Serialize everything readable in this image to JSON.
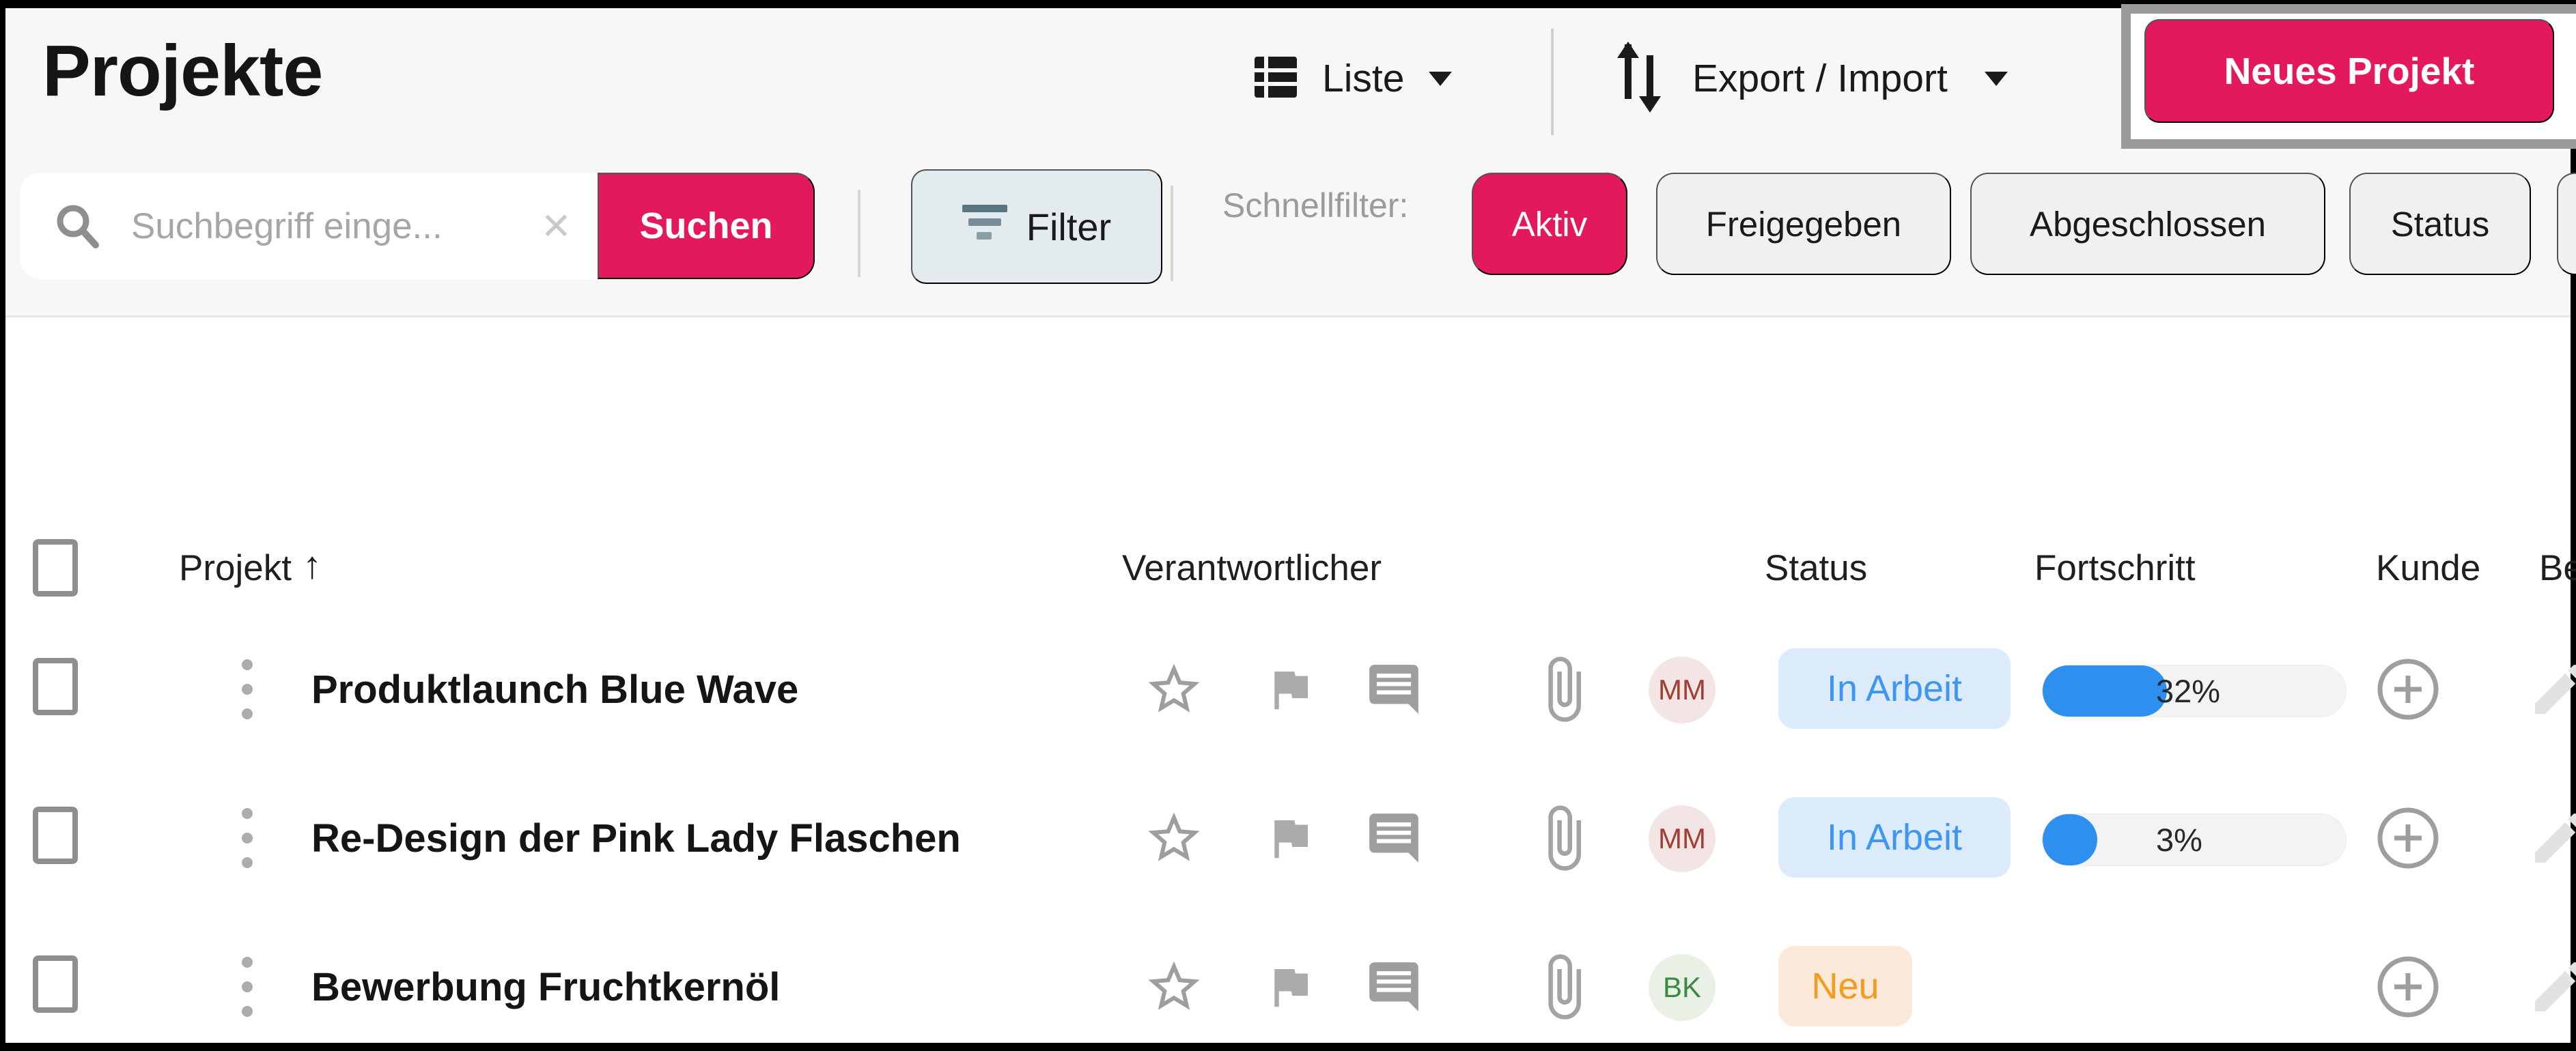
{
  "header": {
    "title": "Projekte",
    "view_switcher": {
      "label": "Liste",
      "icon": "list-grid-icon"
    },
    "export_import": {
      "label": "Export / Import",
      "icon": "up-down-arrows-icon"
    },
    "new_project_button": {
      "label": "Neues Projekt",
      "highlighted": true
    }
  },
  "search": {
    "placeholder": "Suchbegriff einge...",
    "clear_glyph": "✕",
    "submit_label": "Suchen",
    "filter_label": "Filter",
    "quick_filter_label": "Schnellfilter:",
    "quick_filters": [
      {
        "label": "Aktiv",
        "active": true
      },
      {
        "label": "Freigegeben",
        "active": false
      },
      {
        "label": "Abgeschlossen",
        "active": false
      },
      {
        "label": "Status",
        "active": false
      }
    ]
  },
  "table": {
    "columns": {
      "project": "Projekt",
      "responsible": "Verantwortlicher",
      "status": "Status",
      "progress": "Fortschritt",
      "customer": "Kunde",
      "truncated": "Be"
    },
    "sort": {
      "column": "Projekt",
      "direction": "asc",
      "glyph": "↑"
    },
    "rows": [
      {
        "name": "Produktlaunch Blue Wave",
        "assignee_initials": "MM",
        "status": "In Arbeit",
        "progress_label": "32%",
        "progress_fill_pct": "41%"
      },
      {
        "name": "Re-Design der Pink Lady Flaschen",
        "assignee_initials": "MM",
        "status": "In Arbeit",
        "progress_label": "3%",
        "progress_fill_pct": "18%"
      },
      {
        "name": "Bewerbung Fruchtkernöl",
        "assignee_initials": "BK",
        "status": "Neu"
      }
    ]
  },
  "colors": {
    "accent_pink": "#E4195C",
    "status_in_progress_text": "#3E96F0",
    "status_in_progress_bg": "#DCEBFC",
    "status_new_text": "#F59B1E",
    "status_new_bg": "#FCE9D9",
    "progress_fill_blue": "#2E90EE",
    "avatar_mm_bg": "#F2E5E3",
    "avatar_bk_bg": "#E9F1E7"
  }
}
